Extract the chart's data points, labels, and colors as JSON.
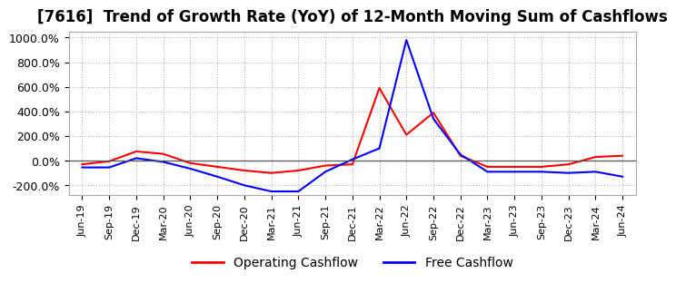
{
  "title": "[7616]  Trend of Growth Rate (YoY) of 12-Month Moving Sum of Cashflows",
  "title_fontsize": 12,
  "legend_labels": [
    "Operating Cashflow",
    "Free Cashflow"
  ],
  "legend_colors": [
    "#ff0000",
    "#0000ff"
  ],
  "ylim": [
    -280,
    1050
  ],
  "yticks": [
    -200,
    0,
    200,
    400,
    600,
    800,
    1000
  ],
  "ytick_labels": [
    "-200.0%",
    "0.0%",
    "200.0%",
    "400.0%",
    "600.0%",
    "800.0%",
    "1000.0%"
  ],
  "background_color": "#ffffff",
  "grid_color": "#b0b0b0",
  "x_labels": [
    "Jun-19",
    "Sep-19",
    "Dec-19",
    "Mar-20",
    "Jun-20",
    "Sep-20",
    "Dec-20",
    "Mar-21",
    "Jun-21",
    "Sep-21",
    "Dec-21",
    "Mar-22",
    "Jun-22",
    "Sep-22",
    "Dec-22",
    "Mar-23",
    "Jun-23",
    "Sep-23",
    "Dec-23",
    "Mar-24",
    "Jun-24"
  ],
  "operating_cashflow": [
    -30,
    -5,
    75,
    55,
    -20,
    -50,
    -80,
    -100,
    -80,
    -40,
    -30,
    590,
    210,
    390,
    40,
    -50,
    -50,
    -50,
    -30,
    30,
    40
  ],
  "free_cashflow": [
    -55,
    -55,
    20,
    -10,
    -65,
    -130,
    -200,
    -250,
    -250,
    -90,
    10,
    100,
    980,
    340,
    50,
    -90,
    -90,
    -90,
    -100,
    -90,
    -130
  ]
}
